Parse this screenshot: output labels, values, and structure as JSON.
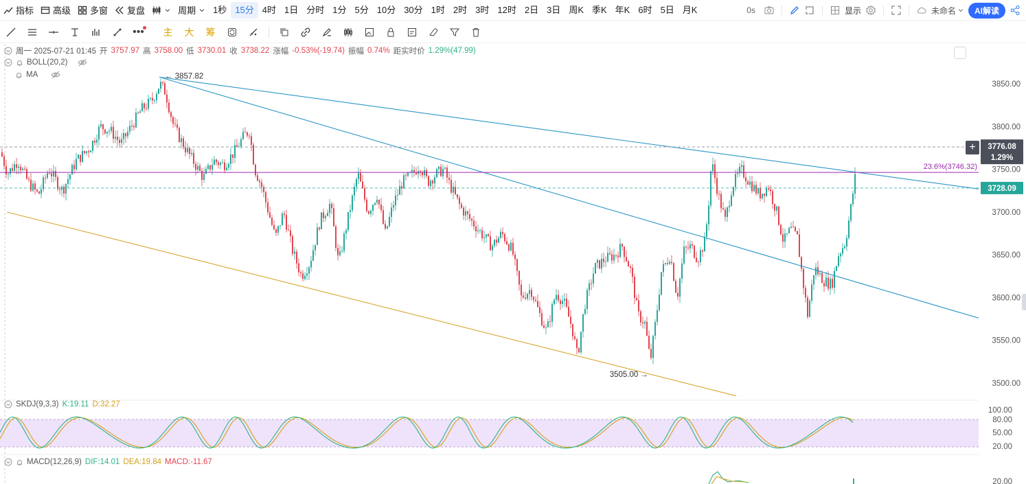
{
  "toolbar": {
    "left": [
      {
        "label": "指标",
        "icon": "indicator-icon"
      },
      {
        "label": "高级",
        "icon": "advanced-chart-icon"
      },
      {
        "label": "多窗",
        "icon": "multi-window-icon"
      },
      {
        "label": "复盘",
        "icon": "replay-icon"
      },
      {
        "label": "",
        "icon": "chart-type-icon"
      },
      {
        "label": "周期",
        "icon": "chevron-down-icon"
      }
    ],
    "periods": [
      "1秒",
      "15分",
      "4时",
      "1日",
      "分时",
      "1分",
      "5分",
      "10分",
      "30分",
      "1时",
      "2时",
      "3时",
      "12时",
      "2日",
      "3日",
      "周K",
      "季K",
      "年K",
      "6时",
      "5日",
      "月K"
    ],
    "active_period": "15分",
    "countdown": "0s",
    "display_label": "显示",
    "layout_name": "未命名",
    "ai_label": "AI解读"
  },
  "draw_tools": {
    "text_tools": [
      "主",
      "大",
      "筹"
    ]
  },
  "info": {
    "date": "周一 2025-07-21 01:45",
    "open_label": "开",
    "open": "3757.97",
    "high_label": "高",
    "high": "3758.00",
    "low_label": "低",
    "low": "3730.01",
    "close_label": "收",
    "close": "3738.22",
    "change_label": "涨幅",
    "change": "-0.53%(-19.74)",
    "amp_label": "振幅",
    "amp": "0.74%",
    "dist_label": "距实时价",
    "dist": "1.29%(47.99)"
  },
  "overlays": {
    "boll": "BOLL(20,2)",
    "ma": "MA"
  },
  "chart_data": {
    "type": "candlestick",
    "price_axis": [
      "3850.00",
      "3800.00",
      "3750.00",
      "3700.00",
      "3650.00",
      "3600.00",
      "3550.00",
      "3500.00"
    ],
    "ylim": [
      3487,
      3882
    ],
    "high_marker": "3857.82",
    "low_marker": "3505.00",
    "fib_label": "23.6%(3746.32)",
    "crosshair_price": "3776.08",
    "crosshair_pct": "1.29%",
    "last_price": "3728.09",
    "key_points": [
      [
        0,
        3770
      ],
      [
        10,
        3745
      ],
      [
        25,
        3760
      ],
      [
        40,
        3735
      ],
      [
        55,
        3720
      ],
      [
        70,
        3750
      ],
      [
        90,
        3725
      ],
      [
        110,
        3760
      ],
      [
        130,
        3775
      ],
      [
        145,
        3800
      ],
      [
        160,
        3795
      ],
      [
        175,
        3780
      ],
      [
        190,
        3800
      ],
      [
        205,
        3820
      ],
      [
        220,
        3830
      ],
      [
        232,
        3850
      ],
      [
        240,
        3840
      ],
      [
        252,
        3800
      ],
      [
        265,
        3780
      ],
      [
        280,
        3760
      ],
      [
        295,
        3740
      ],
      [
        310,
        3760
      ],
      [
        325,
        3755
      ],
      [
        340,
        3770
      ],
      [
        355,
        3790
      ],
      [
        362,
        3795
      ],
      [
        370,
        3750
      ],
      [
        380,
        3730
      ],
      [
        390,
        3700
      ],
      [
        400,
        3670
      ],
      [
        412,
        3700
      ],
      [
        425,
        3655
      ],
      [
        438,
        3625
      ],
      [
        450,
        3640
      ],
      [
        465,
        3690
      ],
      [
        480,
        3710
      ],
      [
        492,
        3640
      ],
      [
        505,
        3690
      ],
      [
        520,
        3745
      ],
      [
        535,
        3700
      ],
      [
        548,
        3720
      ],
      [
        560,
        3675
      ],
      [
        572,
        3710
      ],
      [
        585,
        3735
      ],
      [
        600,
        3745
      ],
      [
        610,
        3755
      ],
      [
        622,
        3735
      ],
      [
        635,
        3745
      ],
      [
        645,
        3750
      ],
      [
        655,
        3730
      ],
      [
        670,
        3705
      ],
      [
        685,
        3690
      ],
      [
        700,
        3675
      ],
      [
        715,
        3660
      ],
      [
        730,
        3675
      ],
      [
        745,
        3655
      ],
      [
        758,
        3600
      ],
      [
        772,
        3610
      ],
      [
        785,
        3580
      ],
      [
        795,
        3560
      ],
      [
        808,
        3605
      ],
      [
        820,
        3595
      ],
      [
        832,
        3565
      ],
      [
        840,
        3530
      ],
      [
        850,
        3590
      ],
      [
        865,
        3635
      ],
      [
        880,
        3645
      ],
      [
        895,
        3650
      ],
      [
        905,
        3660
      ],
      [
        918,
        3630
      ],
      [
        928,
        3580
      ],
      [
        938,
        3570
      ],
      [
        946,
        3525
      ],
      [
        955,
        3580
      ],
      [
        962,
        3630
      ],
      [
        975,
        3650
      ],
      [
        985,
        3600
      ],
      [
        995,
        3655
      ],
      [
        1005,
        3660
      ],
      [
        1015,
        3645
      ],
      [
        1025,
        3665
      ],
      [
        1030,
        3700
      ],
      [
        1035,
        3760
      ],
      [
        1045,
        3720
      ],
      [
        1055,
        3690
      ],
      [
        1065,
        3730
      ],
      [
        1078,
        3750
      ],
      [
        1090,
        3735
      ],
      [
        1105,
        3720
      ],
      [
        1118,
        3730
      ],
      [
        1130,
        3700
      ],
      [
        1140,
        3665
      ],
      [
        1150,
        3680
      ],
      [
        1160,
        3670
      ],
      [
        1168,
        3620
      ],
      [
        1175,
        3580
      ],
      [
        1185,
        3635
      ],
      [
        1198,
        3620
      ],
      [
        1210,
        3615
      ],
      [
        1220,
        3650
      ],
      [
        1230,
        3665
      ],
      [
        1238,
        3705
      ],
      [
        1244,
        3740
      ]
    ]
  },
  "skdj": {
    "name": "SKDJ(9,3,3)",
    "k": "K:19.11",
    "d": "D:32.27",
    "axis": [
      "100.00",
      "80.00",
      "50.00",
      "20.00"
    ]
  },
  "macd": {
    "name": "MACD(12,26,9)",
    "dif": "DIF:14.01",
    "dea": "DEA:19.84",
    "macd": "MACD:-11.67",
    "axis": "20.00"
  },
  "colors": {
    "up": "#26a69a",
    "down": "#e0454f",
    "trend": "#2b95c7",
    "support": "#d8a530",
    "fib": "#9c27b0",
    "active": "#2a7be4"
  }
}
